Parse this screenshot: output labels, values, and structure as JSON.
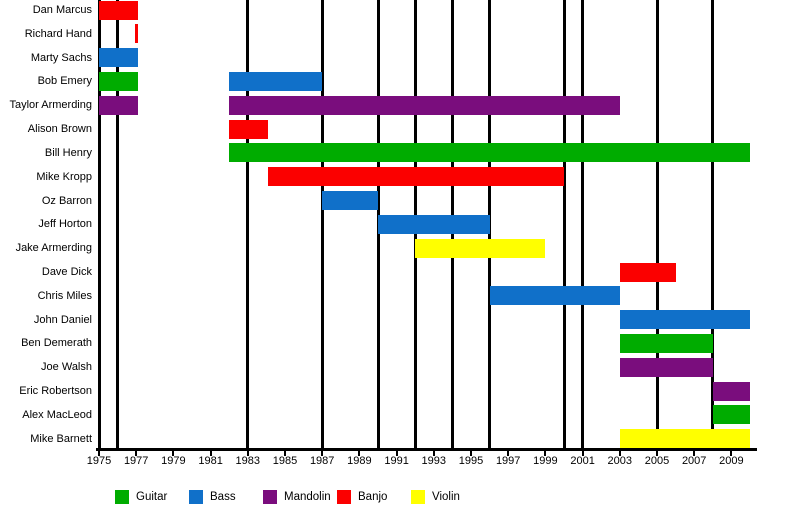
{
  "chart_data": {
    "type": "bar",
    "subtype": "gantt-member-timeline",
    "title": "",
    "xlabel": "",
    "ylabel": "",
    "grid": "off",
    "legend_position": "bottom",
    "xaxis": {
      "min": 1975,
      "max": 2010,
      "tick_start": 1975,
      "tick_end": 2009,
      "tick_step": 2
    },
    "legend": [
      {
        "label": "Guitar",
        "color": "#00AC00"
      },
      {
        "label": "Bass",
        "color": "#1070C9"
      },
      {
        "label": "Mandolin",
        "color": "#7A0D7D"
      },
      {
        "label": "Banjo",
        "color": "#FB0000"
      },
      {
        "label": "Violin",
        "color": "#FFFF00"
      }
    ],
    "event_line_years": [
      1976,
      1983,
      1987,
      1990,
      1992,
      1994,
      1996,
      2000,
      2001,
      2005,
      2008
    ],
    "line_color": "#000000",
    "rows": [
      {
        "name": "Dan Marcus",
        "bars": [
          {
            "start": 1975,
            "end": 1977.1,
            "instrument": "Banjo"
          }
        ]
      },
      {
        "name": "Richard Hand",
        "bars": [
          {
            "start": 1976.95,
            "end": 1977.1,
            "instrument": "Banjo"
          }
        ]
      },
      {
        "name": "Marty Sachs",
        "bars": [
          {
            "start": 1975,
            "end": 1977.1,
            "instrument": "Bass"
          }
        ]
      },
      {
        "name": "Bob Emery",
        "bars": [
          {
            "start": 1975,
            "end": 1977.1,
            "instrument": "Guitar"
          },
          {
            "start": 1982,
            "end": 1987,
            "instrument": "Bass"
          }
        ]
      },
      {
        "name": "Taylor Armerding",
        "bars": [
          {
            "start": 1975,
            "end": 1977.1,
            "instrument": "Mandolin"
          },
          {
            "start": 1982,
            "end": 2003,
            "instrument": "Mandolin"
          }
        ]
      },
      {
        "name": "Alison Brown",
        "bars": [
          {
            "start": 1982,
            "end": 1984.1,
            "instrument": "Banjo"
          }
        ]
      },
      {
        "name": "Bill Henry",
        "bars": [
          {
            "start": 1982,
            "end": 2010,
            "instrument": "Guitar"
          }
        ]
      },
      {
        "name": "Mike Kropp",
        "bars": [
          {
            "start": 1984.1,
            "end": 2000,
            "instrument": "Banjo"
          }
        ]
      },
      {
        "name": "Oz Barron",
        "bars": [
          {
            "start": 1987,
            "end": 1990,
            "instrument": "Bass"
          }
        ]
      },
      {
        "name": "Jeff Horton",
        "bars": [
          {
            "start": 1990,
            "end": 1996,
            "instrument": "Bass"
          }
        ]
      },
      {
        "name": "Jake Armerding",
        "bars": [
          {
            "start": 1992,
            "end": 1999,
            "instrument": "Violin"
          }
        ]
      },
      {
        "name": "Dave Dick",
        "bars": [
          {
            "start": 2003,
            "end": 2006,
            "instrument": "Banjo"
          }
        ]
      },
      {
        "name": "Chris Miles",
        "bars": [
          {
            "start": 1996,
            "end": 2003,
            "instrument": "Bass"
          }
        ]
      },
      {
        "name": "John Daniel",
        "bars": [
          {
            "start": 2003,
            "end": 2010,
            "instrument": "Bass"
          }
        ]
      },
      {
        "name": "Ben Demerath",
        "bars": [
          {
            "start": 2003,
            "end": 2008,
            "instrument": "Guitar"
          }
        ]
      },
      {
        "name": "Joe Walsh",
        "bars": [
          {
            "start": 2003,
            "end": 2008,
            "instrument": "Mandolin"
          }
        ]
      },
      {
        "name": "Eric Robertson",
        "bars": [
          {
            "start": 2008,
            "end": 2010,
            "instrument": "Mandolin"
          }
        ]
      },
      {
        "name": "Alex MacLeod",
        "bars": [
          {
            "start": 2008,
            "end": 2010,
            "instrument": "Guitar"
          }
        ]
      },
      {
        "name": "Mike Barnett",
        "bars": [
          {
            "start": 2003,
            "end": 2010,
            "instrument": "Violin"
          }
        ]
      }
    ]
  }
}
